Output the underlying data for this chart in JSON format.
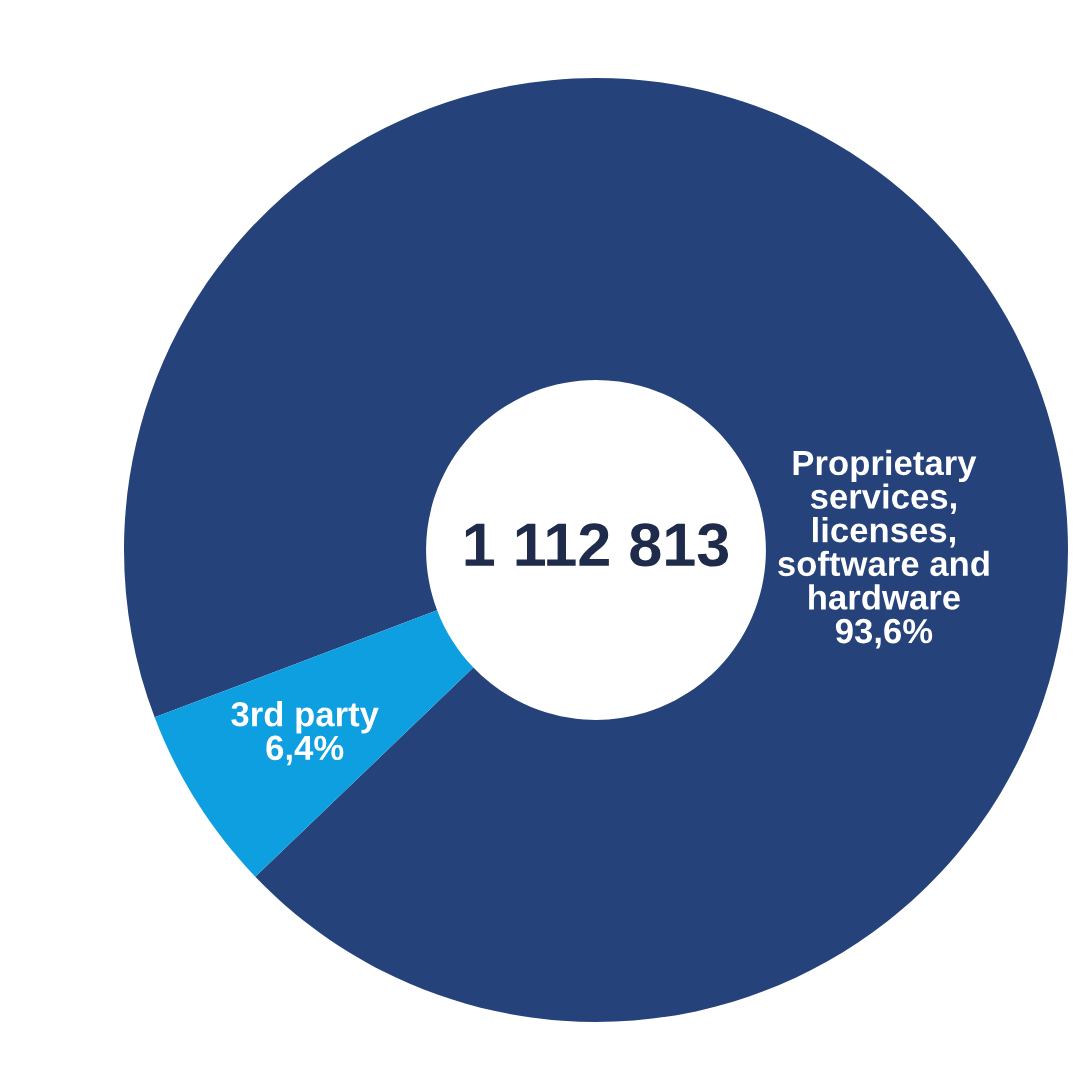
{
  "chart_data": {
    "type": "donut",
    "categories": [
      "Proprietary services, licenses, software and hardware",
      "3rd party"
    ],
    "values": [
      93.6,
      6.4
    ],
    "colors": [
      "#25427a",
      "#0d9fe0"
    ],
    "value_labels": [
      "93,6%",
      "6,4%"
    ],
    "annotations": [
      "1 112 813"
    ],
    "legend": false
  }
}
